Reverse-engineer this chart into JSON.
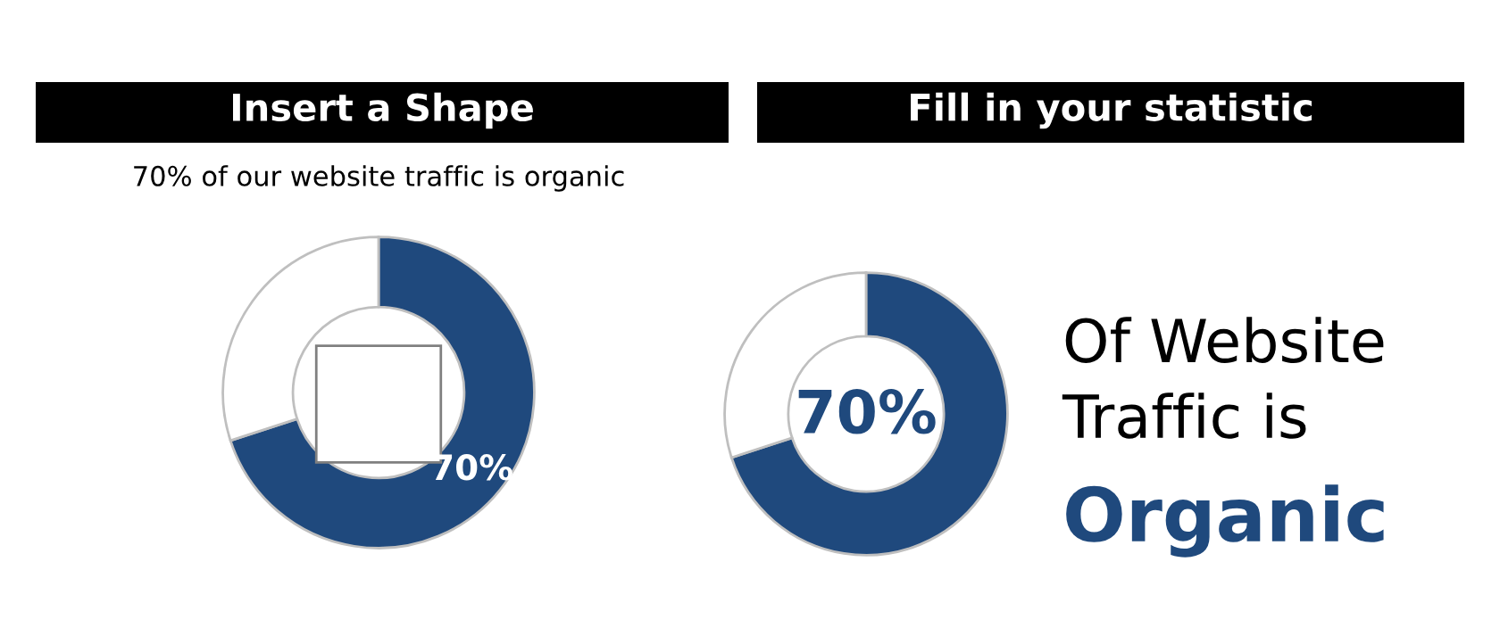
{
  "chart_data": [
    {
      "type": "donut",
      "title": "Insert a Shape",
      "subtitle": "70% of our website traffic is organic",
      "categories": [
        null,
        null
      ],
      "values": [
        70,
        30
      ],
      "colors": [
        "#1f497d",
        "#ffffff"
      ],
      "value_labels": [
        "70%",
        null
      ]
    },
    {
      "type": "donut",
      "title": "Fill in your statistic",
      "categories": [
        null,
        null
      ],
      "values": [
        70,
        30
      ],
      "colors": [
        "#1f497d",
        "#ffffff"
      ],
      "annotations": [
        "70%",
        "Of Website\nTraffic is",
        "Organic"
      ]
    }
  ]
}
